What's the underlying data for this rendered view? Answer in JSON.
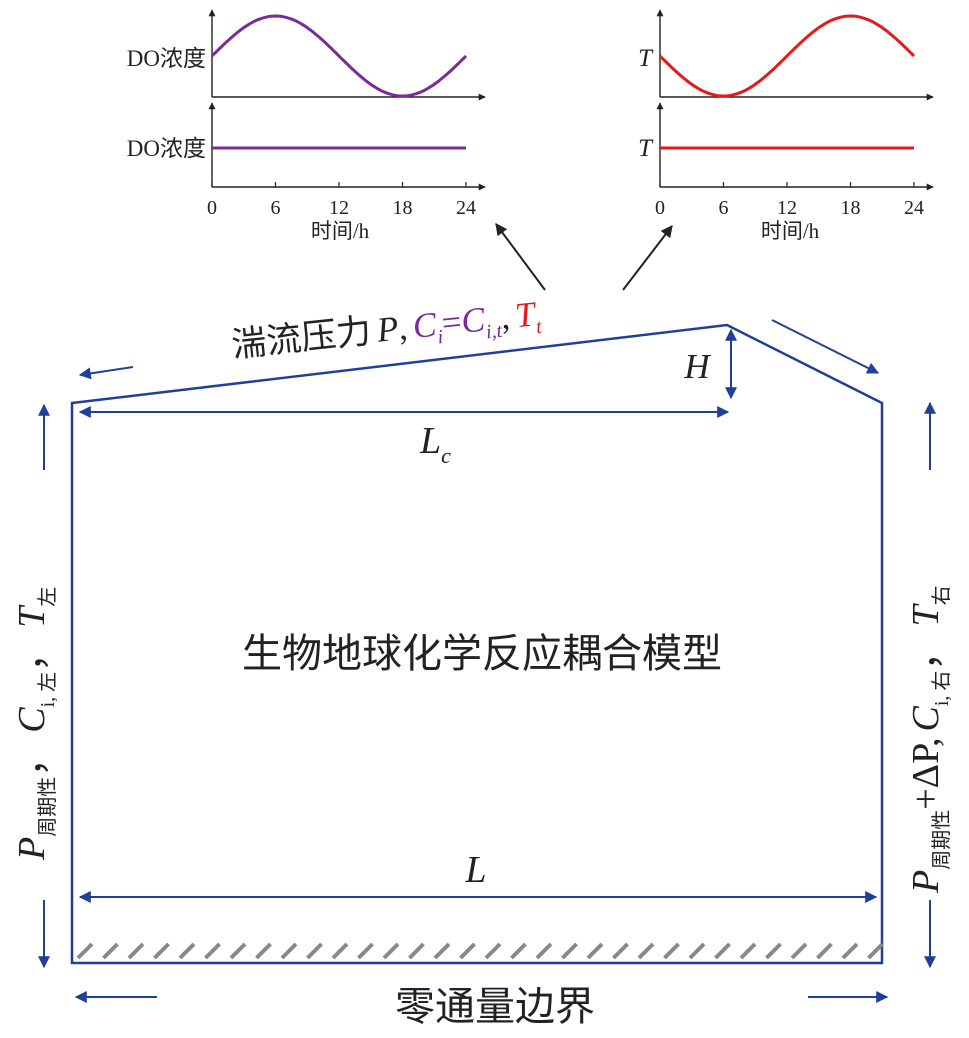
{
  "colors": {
    "boundary": "#1f3f9a",
    "do_series": "#7a2a9a",
    "t_series": "#e31a1c",
    "axis": "#222222",
    "hatch": "#888888",
    "text": "#222222"
  },
  "top_label": {
    "text": "湍流压力",
    "p_symbol": "P",
    "sep1": ",",
    "ci_main": "C",
    "ci_sub": "i",
    "equals": "=",
    "cit_main": "C",
    "cit_sub": "i,t",
    "sep2": ",",
    "tt_main": "T",
    "tt_sub": "t"
  },
  "dimensions": {
    "h_label": "H",
    "lc_main": "L",
    "lc_sub": "c",
    "l_label": "L"
  },
  "model_label": "生物地球化学反应耦合模型",
  "bottom_label": "零通量边界",
  "left_boundary": {
    "p_main": "P",
    "p_sub": "周期性",
    "comma1": "，",
    "c_main": "C",
    "c_sub": "i, 左",
    "comma2": "，",
    "t_main": "T",
    "t_sub": "左"
  },
  "right_boundary": {
    "p_main": "P",
    "p_sub": "周期性",
    "delta": "+ΔP",
    "comma1": ",",
    "c_main": "C",
    "c_sub": "i, 右",
    "comma2": "，",
    "t_main": "T",
    "t_sub": "右"
  },
  "charts": {
    "left": {
      "panels": [
        {
          "ylabel": "DO浓度",
          "kind": "sine"
        },
        {
          "ylabel": "DO浓度",
          "kind": "constant"
        }
      ],
      "xlabel": "时间/h",
      "xticks": [
        0,
        6,
        12,
        18,
        24
      ]
    },
    "right": {
      "panels": [
        {
          "ylabel": "T",
          "kind": "sine"
        },
        {
          "ylabel": "T",
          "kind": "constant"
        }
      ],
      "xlabel": "时间/h",
      "xticks": [
        0,
        6,
        12,
        18,
        24
      ]
    }
  },
  "chart_data": [
    {
      "type": "line",
      "series": [
        {
          "x": [
            0,
            6,
            12,
            18,
            24
          ],
          "y": [
            0.5,
            1,
            0.5,
            0,
            0.5
          ]
        }
      ],
      "ylabel": "DO浓度",
      "xlim": [
        0,
        24
      ]
    },
    {
      "type": "line",
      "series": [
        {
          "x": [
            0,
            24
          ],
          "y": [
            0.5,
            0.5
          ]
        }
      ],
      "ylabel": "DO浓度",
      "xlabel": "时间/h",
      "xticks": [
        0,
        6,
        12,
        18,
        24
      ],
      "xlim": [
        0,
        24
      ]
    },
    {
      "type": "line",
      "series": [
        {
          "x": [
            0,
            6,
            12,
            18,
            24
          ],
          "y": [
            0.5,
            0,
            0.5,
            1,
            0.5
          ]
        }
      ],
      "ylabel": "T",
      "xlim": [
        0,
        24
      ]
    },
    {
      "type": "line",
      "series": [
        {
          "x": [
            0,
            24
          ],
          "y": [
            0.5,
            0.5
          ]
        }
      ],
      "ylabel": "T",
      "xlabel": "时间/h",
      "xticks": [
        0,
        6,
        12,
        18,
        24
      ],
      "xlim": [
        0,
        24
      ]
    }
  ]
}
